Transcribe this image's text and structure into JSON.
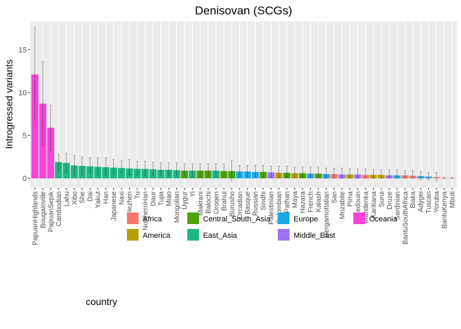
{
  "chart_data": {
    "type": "bar",
    "title": "Denisovan (SCGs)",
    "xlabel": "",
    "ylabel": "Introgressed variants",
    "ylim": [
      -1.1,
      18.3
    ],
    "yticks": [
      0,
      5,
      10,
      15
    ],
    "grid": true,
    "legend": {
      "title": "country",
      "position": "bottom",
      "entries": [
        {
          "name": "Africa",
          "color": "#F8766D"
        },
        {
          "name": "America",
          "color": "#B79F00"
        },
        {
          "name": "Central_South_Asia",
          "color": "#4CA30B"
        },
        {
          "name": "East_Asia",
          "color": "#1DB784"
        },
        {
          "name": "Europe",
          "color": "#1CA8E8"
        },
        {
          "name": "Middle_East",
          "color": "#9D74F6"
        },
        {
          "name": "Oceania",
          "color": "#F544D8"
        }
      ]
    },
    "categories": [
      "PapuanHighlands",
      "Bougainville",
      "PapuanSepik",
      "Cambodian",
      "Lahu",
      "Xibo",
      "She",
      "Dai",
      "Yakut",
      "Han",
      "Japanese",
      "Naxi",
      "Hezhen",
      "Tu",
      "NorthernHan",
      "Daur",
      "Tujia",
      "Miao",
      "Mongolian",
      "Uygur",
      "Yi",
      "Makrani",
      "Balochi",
      "Oroqen",
      "Brahui",
      "Burusho",
      "Orcadian",
      "Basque",
      "Russian",
      "Sindhi",
      "Palestinian",
      "Colombian",
      "Pathan",
      "Maya",
      "Hazara",
      "French",
      "Kalash",
      "BergamoItalian",
      "San",
      "Mozabite",
      "Pima",
      "Bedouin",
      "Mandenka",
      "Karitiana",
      "Surui",
      "Druze",
      "Sardinian",
      "BantuSouthAfrica",
      "Biaka",
      "Adygei",
      "Tuscan",
      "Yoruba",
      "BantuKenya",
      "Mbuti"
    ],
    "groups": [
      "Oceania",
      "Oceania",
      "Oceania",
      "East_Asia",
      "East_Asia",
      "East_Asia",
      "East_Asia",
      "East_Asia",
      "East_Asia",
      "East_Asia",
      "East_Asia",
      "East_Asia",
      "East_Asia",
      "East_Asia",
      "East_Asia",
      "East_Asia",
      "East_Asia",
      "East_Asia",
      "East_Asia",
      "Central_South_Asia",
      "East_Asia",
      "Central_South_Asia",
      "Central_South_Asia",
      "East_Asia",
      "Central_South_Asia",
      "Central_South_Asia",
      "Europe",
      "Europe",
      "Europe",
      "Central_South_Asia",
      "Middle_East",
      "America",
      "Central_South_Asia",
      "America",
      "Central_South_Asia",
      "Europe",
      "Central_South_Asia",
      "Europe",
      "Africa",
      "Middle_East",
      "America",
      "Middle_East",
      "Africa",
      "America",
      "America",
      "Middle_East",
      "Europe",
      "Africa",
      "Africa",
      "Europe",
      "Europe",
      "Africa",
      "Africa",
      "Africa"
    ],
    "values": [
      12.1,
      8.7,
      5.9,
      1.9,
      1.8,
      1.5,
      1.45,
      1.4,
      1.35,
      1.3,
      1.25,
      1.2,
      1.15,
      1.1,
      1.1,
      1.05,
      1.0,
      1.0,
      0.95,
      0.9,
      0.9,
      0.9,
      0.9,
      0.9,
      0.85,
      0.85,
      0.8,
      0.8,
      0.75,
      0.75,
      0.7,
      0.65,
      0.65,
      0.6,
      0.6,
      0.55,
      0.55,
      0.5,
      0.5,
      0.45,
      0.45,
      0.45,
      0.4,
      0.4,
      0.4,
      0.35,
      0.35,
      0.35,
      0.3,
      0.25,
      0.2,
      0.15,
      0.05,
      0.05
    ],
    "err_low": [
      6.8,
      3.8,
      3.3,
      0.8,
      0.7,
      0.5,
      0.5,
      0.6,
      0.4,
      0.4,
      0.5,
      0.6,
      0.4,
      0.4,
      0.3,
      0.4,
      0.4,
      0.3,
      0.3,
      0.3,
      0.2,
      0.2,
      0.2,
      0.2,
      0.2,
      -0.3,
      0.2,
      0.2,
      0.2,
      0.1,
      0.1,
      0.1,
      0.1,
      0.1,
      0.1,
      0.1,
      0.1,
      0.0,
      0.0,
      0.0,
      0.0,
      0.0,
      0.0,
      0.0,
      0.0,
      0.0,
      0.0,
      0.0,
      0.0,
      -0.2,
      -0.2,
      -0.3,
      0.0,
      0.0
    ],
    "err_high": [
      17.6,
      13.6,
      8.5,
      2.8,
      2.9,
      2.7,
      2.5,
      2.4,
      2.4,
      2.4,
      2.2,
      2.1,
      2.2,
      2.0,
      2.0,
      1.9,
      1.8,
      1.8,
      1.8,
      1.7,
      1.7,
      1.7,
      1.7,
      1.7,
      1.7,
      2.1,
      1.5,
      1.5,
      1.5,
      1.5,
      1.4,
      1.4,
      1.4,
      1.3,
      1.3,
      1.3,
      1.3,
      1.2,
      1.2,
      1.2,
      1.1,
      1.1,
      1.1,
      1.0,
      1.0,
      1.0,
      1.0,
      0.9,
      0.9,
      0.8,
      0.7,
      0.7,
      0.1,
      0.1
    ]
  }
}
